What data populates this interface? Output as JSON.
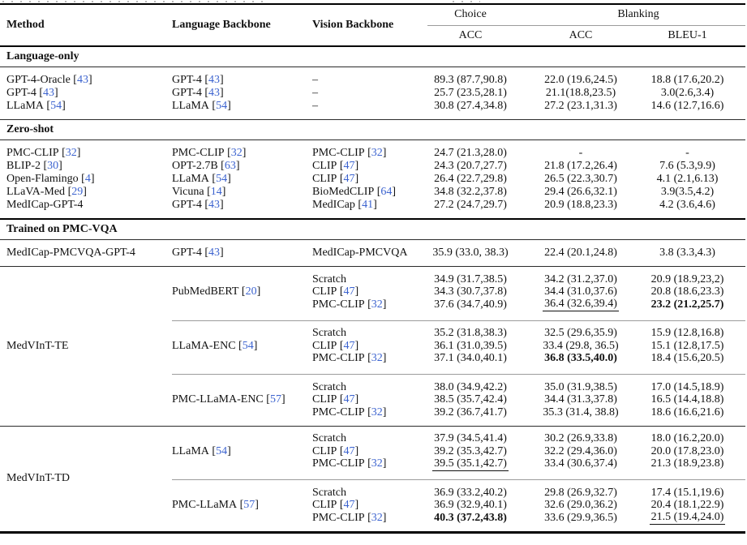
{
  "styles": {
    "citation_color": "#3c63cf",
    "rule_color": "#2b2b2b",
    "divider_color": "#9c9c9c"
  },
  "header": {
    "method": "Method",
    "language": "Language Backbone",
    "vision": "Vision Backbone",
    "group_choice": "Choice",
    "group_blanking": "Blanking",
    "choice_acc": "ACC",
    "blanking_acc": "ACC",
    "blanking_bleu": "BLEU-1"
  },
  "sections": [
    {
      "title": "Language-only",
      "divider_above": "none",
      "segments": [
        {
          "blocks": [
            {
              "method": {
                "text": "GPT-4-Oracle",
                "cite": "43"
              },
              "groups": [
                {
                  "language": {
                    "text": "GPT-4",
                    "cite": "43"
                  },
                  "rows": [
                    {
                      "vision": {
                        "text": "–"
                      },
                      "values": [
                        {
                          "t": "89.3 (87.7,90.8)"
                        },
                        {
                          "t": "22.0 (19.6,24.5)"
                        },
                        {
                          "t": "18.8 (17.6,20.2)"
                        }
                      ]
                    }
                  ]
                }
              ]
            },
            {
              "method": {
                "text": "GPT-4",
                "cite": "43"
              },
              "groups": [
                {
                  "language": {
                    "text": "GPT-4",
                    "cite": "43"
                  },
                  "rows": [
                    {
                      "vision": {
                        "text": "–"
                      },
                      "values": [
                        {
                          "t": "25.7 (23.5,28.1)"
                        },
                        {
                          "t": "21.1(18.8,23.5)"
                        },
                        {
                          "t": "3.0(2.6,3.4)"
                        }
                      ]
                    }
                  ]
                }
              ]
            },
            {
              "method": {
                "text": "LLaMA",
                "cite": "54"
              },
              "groups": [
                {
                  "language": {
                    "text": "LLaMA",
                    "cite": "54"
                  },
                  "rows": [
                    {
                      "vision": {
                        "text": "–"
                      },
                      "values": [
                        {
                          "t": "30.8 (27.4,34.8)"
                        },
                        {
                          "t": "27.2 (23.1,31.3)"
                        },
                        {
                          "t": "14.6 (12.7,16.6)"
                        }
                      ]
                    }
                  ]
                }
              ]
            }
          ]
        }
      ]
    },
    {
      "title": "Zero-shot",
      "divider_above": "normal",
      "segments": [
        {
          "blocks": [
            {
              "method": {
                "text": "PMC-CLIP",
                "cite": "32"
              },
              "groups": [
                {
                  "language": {
                    "text": "PMC-CLIP",
                    "cite": "32"
                  },
                  "rows": [
                    {
                      "vision": {
                        "text": "PMC-CLIP",
                        "cite": "32"
                      },
                      "values": [
                        {
                          "t": "24.7 (21.3,28.0)"
                        },
                        {
                          "t": "-"
                        },
                        {
                          "t": "-"
                        }
                      ]
                    }
                  ]
                }
              ]
            },
            {
              "method": {
                "text": "BLIP-2",
                "cite": "30"
              },
              "groups": [
                {
                  "language": {
                    "text": "OPT-2.7B",
                    "cite": "63"
                  },
                  "rows": [
                    {
                      "vision": {
                        "text": "CLIP",
                        "cite": "47"
                      },
                      "values": [
                        {
                          "t": "24.3 (20.7,27.7)"
                        },
                        {
                          "t": "21.8 (17.2,26.4)"
                        },
                        {
                          "t": "7.6 (5.3,9.9)"
                        }
                      ]
                    }
                  ]
                }
              ]
            },
            {
              "method": {
                "text": "Open-Flamingo",
                "cite": "4"
              },
              "groups": [
                {
                  "language": {
                    "text": "LLaMA",
                    "cite": "54"
                  },
                  "rows": [
                    {
                      "vision": {
                        "text": "CLIP",
                        "cite": "47"
                      },
                      "values": [
                        {
                          "t": "26.4 (22.7,29.8)"
                        },
                        {
                          "t": "26.5 (22.3,30.7)"
                        },
                        {
                          "t": "4.1 (2.1,6.13)"
                        }
                      ]
                    }
                  ]
                }
              ]
            },
            {
              "method": {
                "text": "LLaVA-Med",
                "cite": "29"
              },
              "groups": [
                {
                  "language": {
                    "text": "Vicuna",
                    "cite": "14"
                  },
                  "rows": [
                    {
                      "vision": {
                        "text": "BioMedCLIP",
                        "cite": "64"
                      },
                      "values": [
                        {
                          "t": "34.8 (32.2,37.8)"
                        },
                        {
                          "t": "29.4 (26.6,32.1)"
                        },
                        {
                          "t": "3.9(3.5,4.2)"
                        }
                      ]
                    }
                  ]
                }
              ]
            },
            {
              "method": {
                "text": "MedICap-GPT-4"
              },
              "groups": [
                {
                  "language": {
                    "text": "GPT-4",
                    "cite": "43"
                  },
                  "rows": [
                    {
                      "vision": {
                        "text": "MedICap",
                        "cite": "41"
                      },
                      "values": [
                        {
                          "t": "27.2 (24.7,29.7)"
                        },
                        {
                          "t": "20.9 (18.8,23.3)"
                        },
                        {
                          "t": "4.2 (3.6,4.6)"
                        }
                      ]
                    }
                  ]
                }
              ]
            }
          ]
        }
      ]
    },
    {
      "title": "Trained on PMC-VQA",
      "divider_above": "strong",
      "segments": [
        {
          "blocks": [
            {
              "method": {
                "text": "MedICap-PMCVQA-GPT-4"
              },
              "groups": [
                {
                  "language": {
                    "text": "GPT-4",
                    "cite": "43"
                  },
                  "rows": [
                    {
                      "vision": {
                        "text": "MedICap-PMCVQA"
                      },
                      "values": [
                        {
                          "t": "35.9 (33.0, 38.3)"
                        },
                        {
                          "t": "22.4 (20.1,24.8)"
                        },
                        {
                          "t": "3.8 (3.3,4.3)"
                        }
                      ]
                    }
                  ]
                }
              ]
            }
          ]
        },
        {
          "blocks": [
            {
              "method": {
                "text": "MedVInT-TE"
              },
              "groups": [
                {
                  "language": {
                    "text": "PubMedBERT",
                    "cite": "20"
                  },
                  "rows": [
                    {
                      "vision": {
                        "text": "Scratch"
                      },
                      "values": [
                        {
                          "t": "34.9 (31.7,38.5)"
                        },
                        {
                          "t": "34.2 (31.2,37.0)"
                        },
                        {
                          "t": "20.9 (18.9,23,2)"
                        }
                      ]
                    },
                    {
                      "vision": {
                        "text": "CLIP",
                        "cite": "47"
                      },
                      "values": [
                        {
                          "t": "34.3 (30.7,37.8)"
                        },
                        {
                          "t": "34.4 (31.0,37.6)"
                        },
                        {
                          "t": "20.8 (18.6,23.3)"
                        }
                      ]
                    },
                    {
                      "vision": {
                        "text": "PMC-CLIP",
                        "cite": "32"
                      },
                      "values": [
                        {
                          "t": "37.6 (34.7,40.9)"
                        },
                        {
                          "t": "36.4 (32.6,39.4)",
                          "u": true
                        },
                        {
                          "t": "23.2 (21.2,25.7)",
                          "b": true
                        }
                      ]
                    }
                  ]
                },
                {
                  "language": {
                    "text": "LLaMA-ENC",
                    "cite": "54"
                  },
                  "rows": [
                    {
                      "vision": {
                        "text": "Scratch"
                      },
                      "values": [
                        {
                          "t": "35.2 (31.8,38.3)"
                        },
                        {
                          "t": "32.5 (29.6,35.9)"
                        },
                        {
                          "t": "15.9 (12.8,16.8)"
                        }
                      ]
                    },
                    {
                      "vision": {
                        "text": "CLIP",
                        "cite": "47"
                      },
                      "values": [
                        {
                          "t": "36.1 (31.0,39.5)"
                        },
                        {
                          "t": "33.4 (29.8, 36.5)"
                        },
                        {
                          "t": "15.1 (12.8,17.5)"
                        }
                      ]
                    },
                    {
                      "vision": {
                        "text": "PMC-CLIP",
                        "cite": "32"
                      },
                      "values": [
                        {
                          "t": "37.1 (34.0,40.1)"
                        },
                        {
                          "t": "36.8 (33.5,40.0)",
                          "b": true
                        },
                        {
                          "t": "18.4 (15.6,20.5)"
                        }
                      ]
                    }
                  ]
                },
                {
                  "language": {
                    "text": "PMC-LLaMA-ENC",
                    "cite": "57"
                  },
                  "rows": [
                    {
                      "vision": {
                        "text": "Scratch"
                      },
                      "values": [
                        {
                          "t": "38.0 (34.9,42.2)"
                        },
                        {
                          "t": "35.0 (31.9,38.5)"
                        },
                        {
                          "t": "17.0 (14.5,18.9)"
                        }
                      ]
                    },
                    {
                      "vision": {
                        "text": "CLIP",
                        "cite": "47"
                      },
                      "values": [
                        {
                          "t": "38.5 (35.7,42.4)"
                        },
                        {
                          "t": "34.4 (31.3,37.8)"
                        },
                        {
                          "t": "16.5 (14.4,18.8)"
                        }
                      ]
                    },
                    {
                      "vision": {
                        "text": "PMC-CLIP",
                        "cite": "32"
                      },
                      "values": [
                        {
                          "t": "39.2 (36.7,41.7)"
                        },
                        {
                          "t": "35.3 (31.4, 38.8)"
                        },
                        {
                          "t": "18.6 (16.6,21.6)"
                        }
                      ]
                    }
                  ]
                }
              ]
            }
          ]
        },
        {
          "blocks": [
            {
              "method": {
                "text": "MedVInT-TD"
              },
              "groups": [
                {
                  "language": {
                    "text": "LLaMA",
                    "cite": "54"
                  },
                  "rows": [
                    {
                      "vision": {
                        "text": "Scratch"
                      },
                      "values": [
                        {
                          "t": "37.9 (34.5,41.4)"
                        },
                        {
                          "t": "30.2 (26.9,33.8)"
                        },
                        {
                          "t": "18.0 (16.2,20.0)"
                        }
                      ]
                    },
                    {
                      "vision": {
                        "text": "CLIP",
                        "cite": "47"
                      },
                      "values": [
                        {
                          "t": "39.2 (35.3,42.7)"
                        },
                        {
                          "t": "32.2 (29.4,36.0)"
                        },
                        {
                          "t": "20.0 (17.8,23.0)"
                        }
                      ]
                    },
                    {
                      "vision": {
                        "text": "PMC-CLIP",
                        "cite": "32"
                      },
                      "values": [
                        {
                          "t": "39.5 (35.1,42.7)",
                          "u": true
                        },
                        {
                          "t": "33.4 (30.6,37.4)"
                        },
                        {
                          "t": "21.3 (18.9,23.8)"
                        }
                      ]
                    }
                  ]
                },
                {
                  "language": {
                    "text": "PMC-LLaMA",
                    "cite": "57"
                  },
                  "rows": [
                    {
                      "vision": {
                        "text": "Scratch"
                      },
                      "values": [
                        {
                          "t": "36.9 (33.2,40.2)"
                        },
                        {
                          "t": "29.8 (26.9,32.7)"
                        },
                        {
                          "t": "17.4 (15.1,19.6)"
                        }
                      ]
                    },
                    {
                      "vision": {
                        "text": "CLIP",
                        "cite": "47"
                      },
                      "values": [
                        {
                          "t": "36.9 (32.9,40.1)"
                        },
                        {
                          "t": "32.6 (29.0,36.2)"
                        },
                        {
                          "t": "20.4 (18.1,22.9)"
                        }
                      ]
                    },
                    {
                      "vision": {
                        "text": "PMC-CLIP",
                        "cite": "32"
                      },
                      "values": [
                        {
                          "t": "40.3 (37.2,43.8)",
                          "b": true
                        },
                        {
                          "t": "33.6 (29.9,36.5)"
                        },
                        {
                          "t": "21.5 (19.4,24.0)",
                          "u": true
                        }
                      ]
                    }
                  ]
                }
              ]
            }
          ]
        }
      ]
    }
  ]
}
